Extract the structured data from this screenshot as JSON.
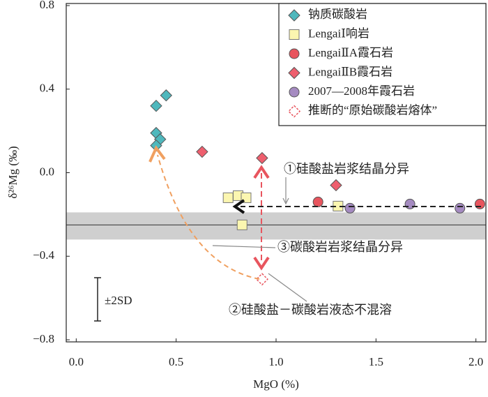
{
  "chart_data": {
    "type": "scatter",
    "xlabel": "MgO (%)",
    "ylabel": "δ²⁶Mg (‰)",
    "xlim": [
      -0.05,
      2.05
    ],
    "ylim": [
      -0.81,
      0.81
    ],
    "xticks": [
      {
        "value": 0,
        "label": "0.0"
      },
      {
        "value": 0.5,
        "label": "0.5"
      },
      {
        "value": 1,
        "label": "1.0"
      },
      {
        "value": 1.5,
        "label": "1.5"
      },
      {
        "value": 2,
        "label": "2.0"
      }
    ],
    "yticks": [
      {
        "value": 0.8,
        "label": "0.8"
      },
      {
        "value": 0.4,
        "label": "0.4"
      },
      {
        "value": 0,
        "label": "0.0"
      },
      {
        "value": -0.4,
        "label": "−0.4"
      },
      {
        "value": -0.8,
        "label": "−0.8"
      }
    ],
    "band": {
      "values": [
        -0.19,
        -0.32
      ],
      "line": -0.25,
      "color": "#cfcfcf"
    },
    "series": [
      {
        "name": "钠质碳酸岩",
        "marker": "diamond",
        "color": "#4fb8bd",
        "x": [
          0.45,
          0.4,
          0.4,
          0.42,
          0.4
        ],
        "values": [
          0.37,
          0.32,
          0.19,
          0.16,
          0.13
        ]
      },
      {
        "name": "LengaiⅠ响岩",
        "marker": "square",
        "color": "#fbf6b0",
        "x": [
          0.76,
          0.81,
          0.85,
          0.83,
          1.31
        ],
        "values": [
          -0.12,
          -0.11,
          -0.12,
          -0.25,
          -0.16
        ]
      },
      {
        "name": "LengaiⅡA霞石岩",
        "marker": "circle",
        "color": "#e8555e",
        "x": [
          1.21,
          2.02
        ],
        "values": [
          -0.14,
          -0.15
        ]
      },
      {
        "name": "LengaiⅡB霞石岩",
        "marker": "diamond",
        "color": "#ee5f6e",
        "x": [
          0.63,
          0.93,
          1.3
        ],
        "values": [
          0.1,
          0.07,
          -0.06
        ]
      },
      {
        "name": "2007—2008年霞石岩",
        "marker": "circle",
        "color": "#a58bc1",
        "x": [
          1.37,
          1.67,
          1.92
        ],
        "values": [
          -0.17,
          -0.15,
          -0.17
        ]
      },
      {
        "name": "推断的“原始碳酸岩熔体”",
        "marker": "diamond-open",
        "color": "#e8555e",
        "x": [
          0.93
        ],
        "values": [
          -0.51
        ]
      }
    ],
    "annotations": [
      "①硅酸盐岩浆结晶分异",
      "③碳酸岩岩浆结晶分异",
      "②硅酸盐－碳酸岩液态不混溶",
      "±2SD"
    ]
  }
}
